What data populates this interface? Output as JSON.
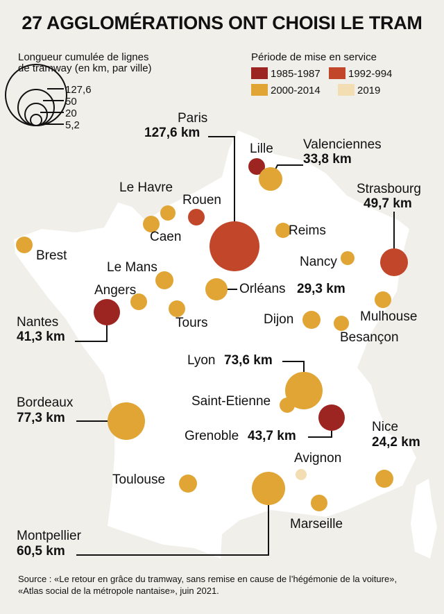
{
  "title": "27 AGGLOMÉRATIONS ONT CHOISI LE TRAM",
  "legend_size": {
    "title_line1": "Longueur cumulée de lignes",
    "title_line2": "de tramway (en km, par ville)",
    "values": [
      "127,6",
      "50",
      "20",
      "5,2"
    ]
  },
  "legend_period": {
    "title": "Période de mise en service",
    "items": [
      {
        "label": "1985-1987",
        "color": "#9c2521"
      },
      {
        "label": "1992-994",
        "color": "#c1462a"
      },
      {
        "label": "2000-2014",
        "color": "#e0a535"
      },
      {
        "label": "2019",
        "color": "#f3ddb3"
      }
    ]
  },
  "cities": [
    {
      "name": "Paris",
      "km": "127,6 km",
      "period": "1992-994"
    },
    {
      "name": "Lille",
      "period": "1985-1987"
    },
    {
      "name": "Valenciennes",
      "km": "33,8 km",
      "period": "2000-2014"
    },
    {
      "name": "Rouen",
      "period": "1992-994"
    },
    {
      "name": "Le Havre",
      "period": "2000-2014"
    },
    {
      "name": "Caen",
      "period": "2000-2014"
    },
    {
      "name": "Reims",
      "period": "2000-2014"
    },
    {
      "name": "Strasbourg",
      "km": "49,7 km",
      "period": "1992-994"
    },
    {
      "name": "Nancy",
      "period": "2000-2014"
    },
    {
      "name": "Brest",
      "period": "2000-2014"
    },
    {
      "name": "Le Mans",
      "period": "2000-2014"
    },
    {
      "name": "Angers",
      "period": "2000-2014"
    },
    {
      "name": "Nantes",
      "km": "41,3 km",
      "period": "1985-1987"
    },
    {
      "name": "Tours",
      "period": "2000-2014"
    },
    {
      "name": "Orléans",
      "km": "29,3 km",
      "period": "2000-2014"
    },
    {
      "name": "Dijon",
      "period": "2000-2014"
    },
    {
      "name": "Besançon",
      "period": "2000-2014"
    },
    {
      "name": "Mulhouse",
      "period": "2000-2014"
    },
    {
      "name": "Lyon",
      "km": "73,6 km",
      "period": "2000-2014"
    },
    {
      "name": "Saint-Etienne",
      "period": "2000-2014"
    },
    {
      "name": "Grenoble",
      "km": "43,7 km",
      "period": "1985-1987"
    },
    {
      "name": "Bordeaux",
      "km": "77,3 km",
      "period": "2000-2014"
    },
    {
      "name": "Nice",
      "km": "24,2 km",
      "period": "2000-2014"
    },
    {
      "name": "Avignon",
      "period": "2019"
    },
    {
      "name": "Toulouse",
      "period": "2000-2014"
    },
    {
      "name": "Montpellier",
      "km": "60,5 km",
      "period": "2000-2014"
    },
    {
      "name": "Marseille",
      "period": "2000-2014"
    }
  ],
  "source_line1": "Source : «Le retour en grâce du tramway, sans remise en cause de l’hégémonie de la voiture»,",
  "source_line2": "«Atlas social de la métropole nantaise», juin 2021."
}
